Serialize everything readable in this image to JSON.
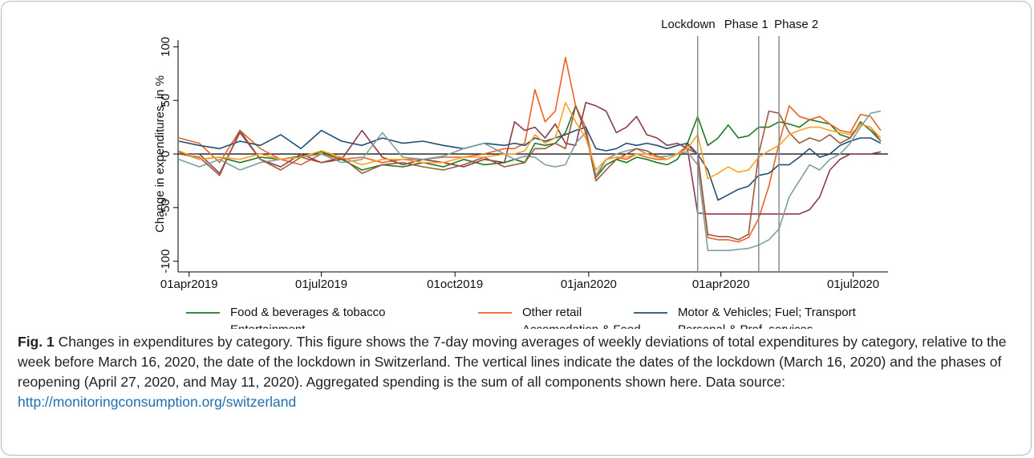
{
  "chart_data": {
    "type": "line",
    "y_label": "Change in expenditures, in %",
    "x": [
      "2019-03-25",
      "2019-04-08",
      "2019-04-22",
      "2019-05-06",
      "2019-05-20",
      "2019-06-03",
      "2019-06-17",
      "2019-07-01",
      "2019-07-15",
      "2019-07-29",
      "2019-08-12",
      "2019-08-26",
      "2019-09-09",
      "2019-09-23",
      "2019-10-07",
      "2019-10-21",
      "2019-11-04",
      "2019-11-11",
      "2019-11-18",
      "2019-11-25",
      "2019-12-02",
      "2019-12-09",
      "2019-12-16",
      "2019-12-23",
      "2019-12-30",
      "2020-01-06",
      "2020-01-13",
      "2020-01-20",
      "2020-01-27",
      "2020-02-03",
      "2020-02-10",
      "2020-02-17",
      "2020-02-24",
      "2020-03-02",
      "2020-03-09",
      "2020-03-16",
      "2020-03-23",
      "2020-03-30",
      "2020-04-06",
      "2020-04-13",
      "2020-04-20",
      "2020-04-27",
      "2020-05-04",
      "2020-05-11",
      "2020-05-18",
      "2020-05-25",
      "2020-06-01",
      "2020-06-08",
      "2020-06-15",
      "2020-06-22",
      "2020-06-29",
      "2020-07-06",
      "2020-07-13",
      "2020-07-20"
    ],
    "series": [
      {
        "name": "Food & beverages & tobacco",
        "color": "#1f7a1f",
        "values": [
          2,
          -5,
          -3,
          -8,
          -3,
          -5,
          -2,
          2,
          -5,
          -15,
          -10,
          -12,
          -8,
          -12,
          -5,
          -10,
          -8,
          -5,
          -8,
          10,
          8,
          10,
          20,
          45,
          20,
          -22,
          -10,
          -5,
          -8,
          -3,
          -5,
          -8,
          -10,
          -5,
          10,
          35,
          8,
          15,
          27,
          15,
          17,
          25,
          25,
          30,
          28,
          25,
          32,
          30,
          28,
          18,
          15,
          30,
          22,
          12
        ]
      },
      {
        "name": "Other retail",
        "color": "#e8622a",
        "values": [
          15,
          10,
          -8,
          22,
          5,
          -5,
          -10,
          0,
          -5,
          -3,
          -8,
          -5,
          -5,
          -3,
          -3,
          0,
          5,
          5,
          10,
          60,
          30,
          40,
          90,
          45,
          25,
          -22,
          -5,
          -3,
          -5,
          0,
          -3,
          -5,
          -5,
          0,
          8,
          0,
          -78,
          -80,
          -80,
          -82,
          -78,
          -60,
          -30,
          10,
          45,
          35,
          32,
          35,
          28,
          22,
          20,
          37,
          35,
          22
        ]
      },
      {
        "name": "Motor & Vehicles; Fuel; Transport",
        "color": "#1f4e79",
        "values": [
          12,
          8,
          5,
          12,
          8,
          18,
          5,
          22,
          12,
          8,
          15,
          10,
          12,
          8,
          5,
          10,
          8,
          10,
          8,
          15,
          12,
          15,
          18,
          22,
          25,
          5,
          3,
          5,
          10,
          8,
          10,
          8,
          5,
          8,
          10,
          0,
          -15,
          -43,
          -38,
          -33,
          -30,
          -20,
          -18,
          -10,
          -10,
          -3,
          5,
          -3,
          0,
          8,
          12,
          15,
          15,
          10
        ]
      },
      {
        "name": "Entertainment",
        "color": "#8b3a4a",
        "values": [
          0,
          0,
          -18,
          20,
          -5,
          -12,
          0,
          -8,
          -5,
          22,
          -3,
          -10,
          -5,
          -8,
          -12,
          -5,
          -8,
          30,
          22,
          25,
          15,
          28,
          10,
          8,
          48,
          45,
          40,
          20,
          25,
          35,
          18,
          15,
          8,
          10,
          5,
          -55,
          -56,
          -56,
          -56,
          -56,
          -56,
          -56,
          -56,
          -56,
          -56,
          -56,
          -52,
          -40,
          -15,
          -5,
          0,
          0,
          0,
          2
        ]
      },
      {
        "name": "Accomodation & Food",
        "color": "#7f9e9e",
        "values": [
          -5,
          -12,
          -5,
          -15,
          -8,
          -5,
          -3,
          0,
          -8,
          -5,
          20,
          -3,
          -5,
          -2,
          5,
          10,
          0,
          -5,
          -2,
          -3,
          -10,
          -12,
          -10,
          10,
          20,
          -20,
          -5,
          0,
          3,
          5,
          0,
          -3,
          -2,
          0,
          2,
          -10,
          -90,
          -90,
          -90,
          -89,
          -88,
          -85,
          -80,
          -70,
          -40,
          -25,
          -10,
          -15,
          -5,
          0,
          10,
          25,
          38,
          40
        ]
      },
      {
        "name": "Personal & Prof. services",
        "color": "#9c5a3c",
        "values": [
          0,
          -3,
          -20,
          22,
          -5,
          -15,
          -3,
          -8,
          -3,
          -18,
          -10,
          -8,
          -12,
          -15,
          -10,
          -3,
          -12,
          -10,
          -8,
          5,
          5,
          10,
          5,
          45,
          20,
          -25,
          -15,
          -5,
          0,
          5,
          3,
          -2,
          -5,
          0,
          5,
          0,
          -75,
          -77,
          -77,
          -80,
          -75,
          0,
          40,
          38,
          20,
          10,
          15,
          12,
          18,
          10,
          15,
          28,
          25,
          12
        ]
      },
      {
        "name": "Aggregated spending",
        "color": "#ffa020",
        "values": [
          3,
          -5,
          -3,
          -5,
          0,
          -5,
          -3,
          3,
          -3,
          -10,
          -5,
          -5,
          -8,
          -8,
          -3,
          -3,
          0,
          0,
          3,
          18,
          10,
          15,
          48,
          30,
          15,
          -15,
          -5,
          -3,
          -3,
          0,
          0,
          -3,
          -5,
          0,
          5,
          18,
          -23,
          -18,
          -12,
          -17,
          -15,
          -3,
          3,
          8,
          18,
          22,
          25,
          25,
          22,
          20,
          18,
          28,
          25,
          15
        ]
      }
    ],
    "xlim": [
      "2019-03-20",
      "2020-07-25"
    ],
    "xticks": [
      {
        "value": "2019-04-01",
        "label": "01apr2019"
      },
      {
        "value": "2019-07-01",
        "label": "01jul2019"
      },
      {
        "value": "2019-10-01",
        "label": "01oct2019"
      },
      {
        "value": "2020-01-01",
        "label": "01jan2020"
      },
      {
        "value": "2020-04-01",
        "label": "01apr2020"
      },
      {
        "value": "2020-07-01",
        "label": "01jul2020"
      }
    ],
    "ylim": [
      -110,
      110
    ],
    "yticks": [
      -100,
      -50,
      0,
      50,
      100
    ],
    "zero_line": true,
    "vlines": [
      {
        "x": "2020-03-16",
        "label": "Lockdown"
      },
      {
        "x": "2020-04-27",
        "label": "Phase 1"
      },
      {
        "x": "2020-05-11",
        "label": "Phase 2"
      }
    ],
    "vline_color": "#8c8c8c",
    "legend": "bottom"
  },
  "caption": {
    "label": "Fig. 1",
    "text": "Changes in expenditures by category. This figure shows the 7-day moving averages of weekly deviations of total expenditures by category, relative to the week before March 16, 2020, the date of the lockdown in Switzerland. The vertical lines indicate the dates of the lockdown (March 16, 2020) and the phases of reopening (April 27, 2020, and May 11, 2020). Aggregated spending is the sum of all components shown here. Data source:",
    "link": "http://monitoringconsumption.org/switzerland"
  }
}
